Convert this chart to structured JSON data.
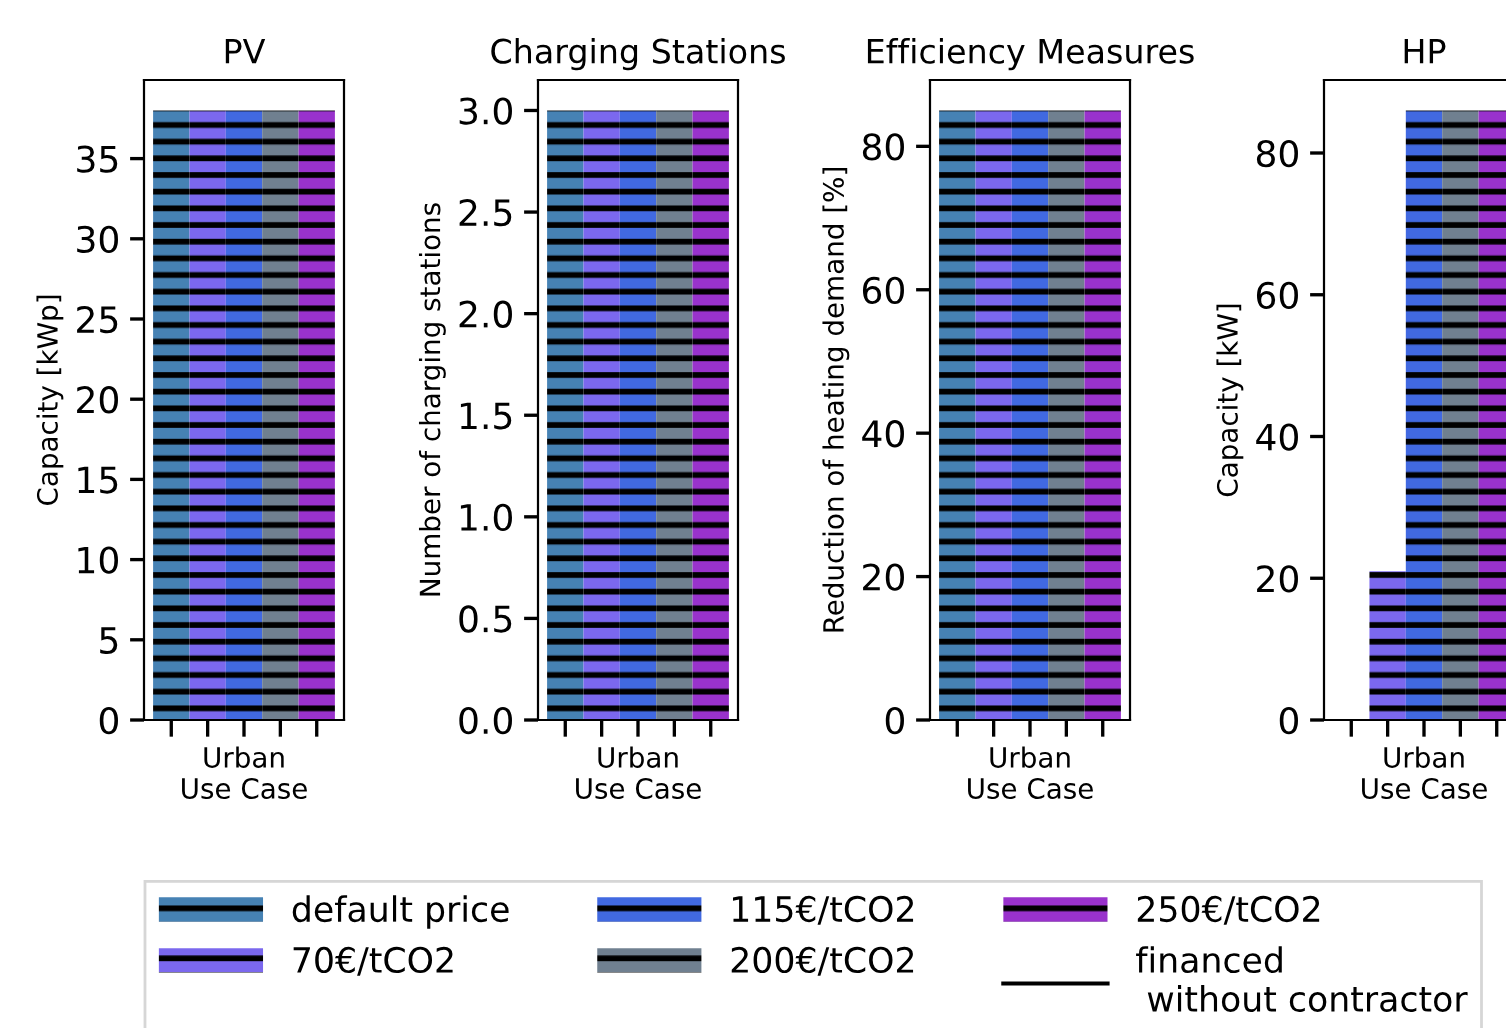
{
  "chart_data": [
    {
      "type": "bar",
      "title": "PV",
      "ylabel": "Capacity [kWp]",
      "categories": [
        "Urban\nUse Case"
      ],
      "ylim": [
        0,
        39.9
      ],
      "yticks": [
        0,
        5,
        10,
        15,
        20,
        25,
        30,
        35
      ],
      "grid": false,
      "legend": "bottom",
      "series": [
        {
          "name": "default price",
          "color": "#4682b4",
          "values": [
            38
          ]
        },
        {
          "name": "70€/tCO2",
          "color": "#7b68ee",
          "values": [
            38
          ]
        },
        {
          "name": "115€/tCO2",
          "color": "#4169e1",
          "values": [
            38
          ]
        },
        {
          "name": "200€/tCO2",
          "color": "#708090",
          "values": [
            38
          ]
        },
        {
          "name": "250€/tCO2",
          "color": "#9932cc",
          "values": [
            38
          ]
        },
        {
          "name": "financed\n without contractor",
          "color": "#000000",
          "values": [
            null
          ]
        }
      ]
    },
    {
      "type": "bar",
      "title": "Charging Stations",
      "ylabel": "Number of charging stations",
      "categories": [
        "Urban\nUse Case"
      ],
      "ylim": [
        0,
        3.15
      ],
      "yticks": [
        {
          "value": 0,
          "label": "0.0"
        },
        0.5,
        {
          "value": 1,
          "label": "1.0"
        },
        1.5,
        {
          "value": 2,
          "label": "2.0"
        },
        2.5,
        {
          "value": 3,
          "label": "3.0"
        }
      ],
      "grid": false,
      "series": [
        {
          "color": "#4682b4",
          "values": [
            3
          ]
        },
        {
          "color": "#7b68ee",
          "values": [
            3
          ]
        },
        {
          "color": "#4169e1",
          "values": [
            3
          ]
        },
        {
          "color": "#708090",
          "values": [
            3
          ]
        },
        {
          "color": "#9932cc",
          "values": [
            3
          ]
        },
        {
          "color": "#000000",
          "values": [
            null
          ]
        }
      ]
    },
    {
      "type": "bar",
      "title": "Efficiency Measures",
      "ylabel": "Reduction of heating demand [%]",
      "categories": [
        "Urban\nUse Case"
      ],
      "ylim": [
        0,
        89.25
      ],
      "yticks": [
        0,
        20,
        40,
        60,
        80
      ],
      "grid": false,
      "series": [
        {
          "color": "#4682b4",
          "values": [
            85
          ]
        },
        {
          "color": "#7b68ee",
          "values": [
            85
          ]
        },
        {
          "color": "#4169e1",
          "values": [
            85
          ]
        },
        {
          "color": "#708090",
          "values": [
            85
          ]
        },
        {
          "color": "#9932cc",
          "values": [
            85
          ]
        },
        {
          "color": "#000000",
          "values": [
            null
          ]
        }
      ]
    },
    {
      "type": "bar",
      "title": "HP",
      "ylabel": "Capacity [kW]",
      "categories": [
        "Urban\nUse Case"
      ],
      "ylim": [
        0,
        90.3
      ],
      "yticks": [
        0,
        20,
        40,
        60,
        80
      ],
      "grid": false,
      "series": [
        {
          "color": "#4682b4",
          "values": [
            0
          ]
        },
        {
          "color": "#7b68ee",
          "values": [
            21
          ]
        },
        {
          "color": "#4169e1",
          "values": [
            86
          ]
        },
        {
          "color": "#708090",
          "values": [
            86
          ]
        },
        {
          "color": "#9932cc",
          "values": [
            86
          ]
        },
        {
          "color": "#000000",
          "values": [
            null
          ]
        }
      ]
    }
  ]
}
